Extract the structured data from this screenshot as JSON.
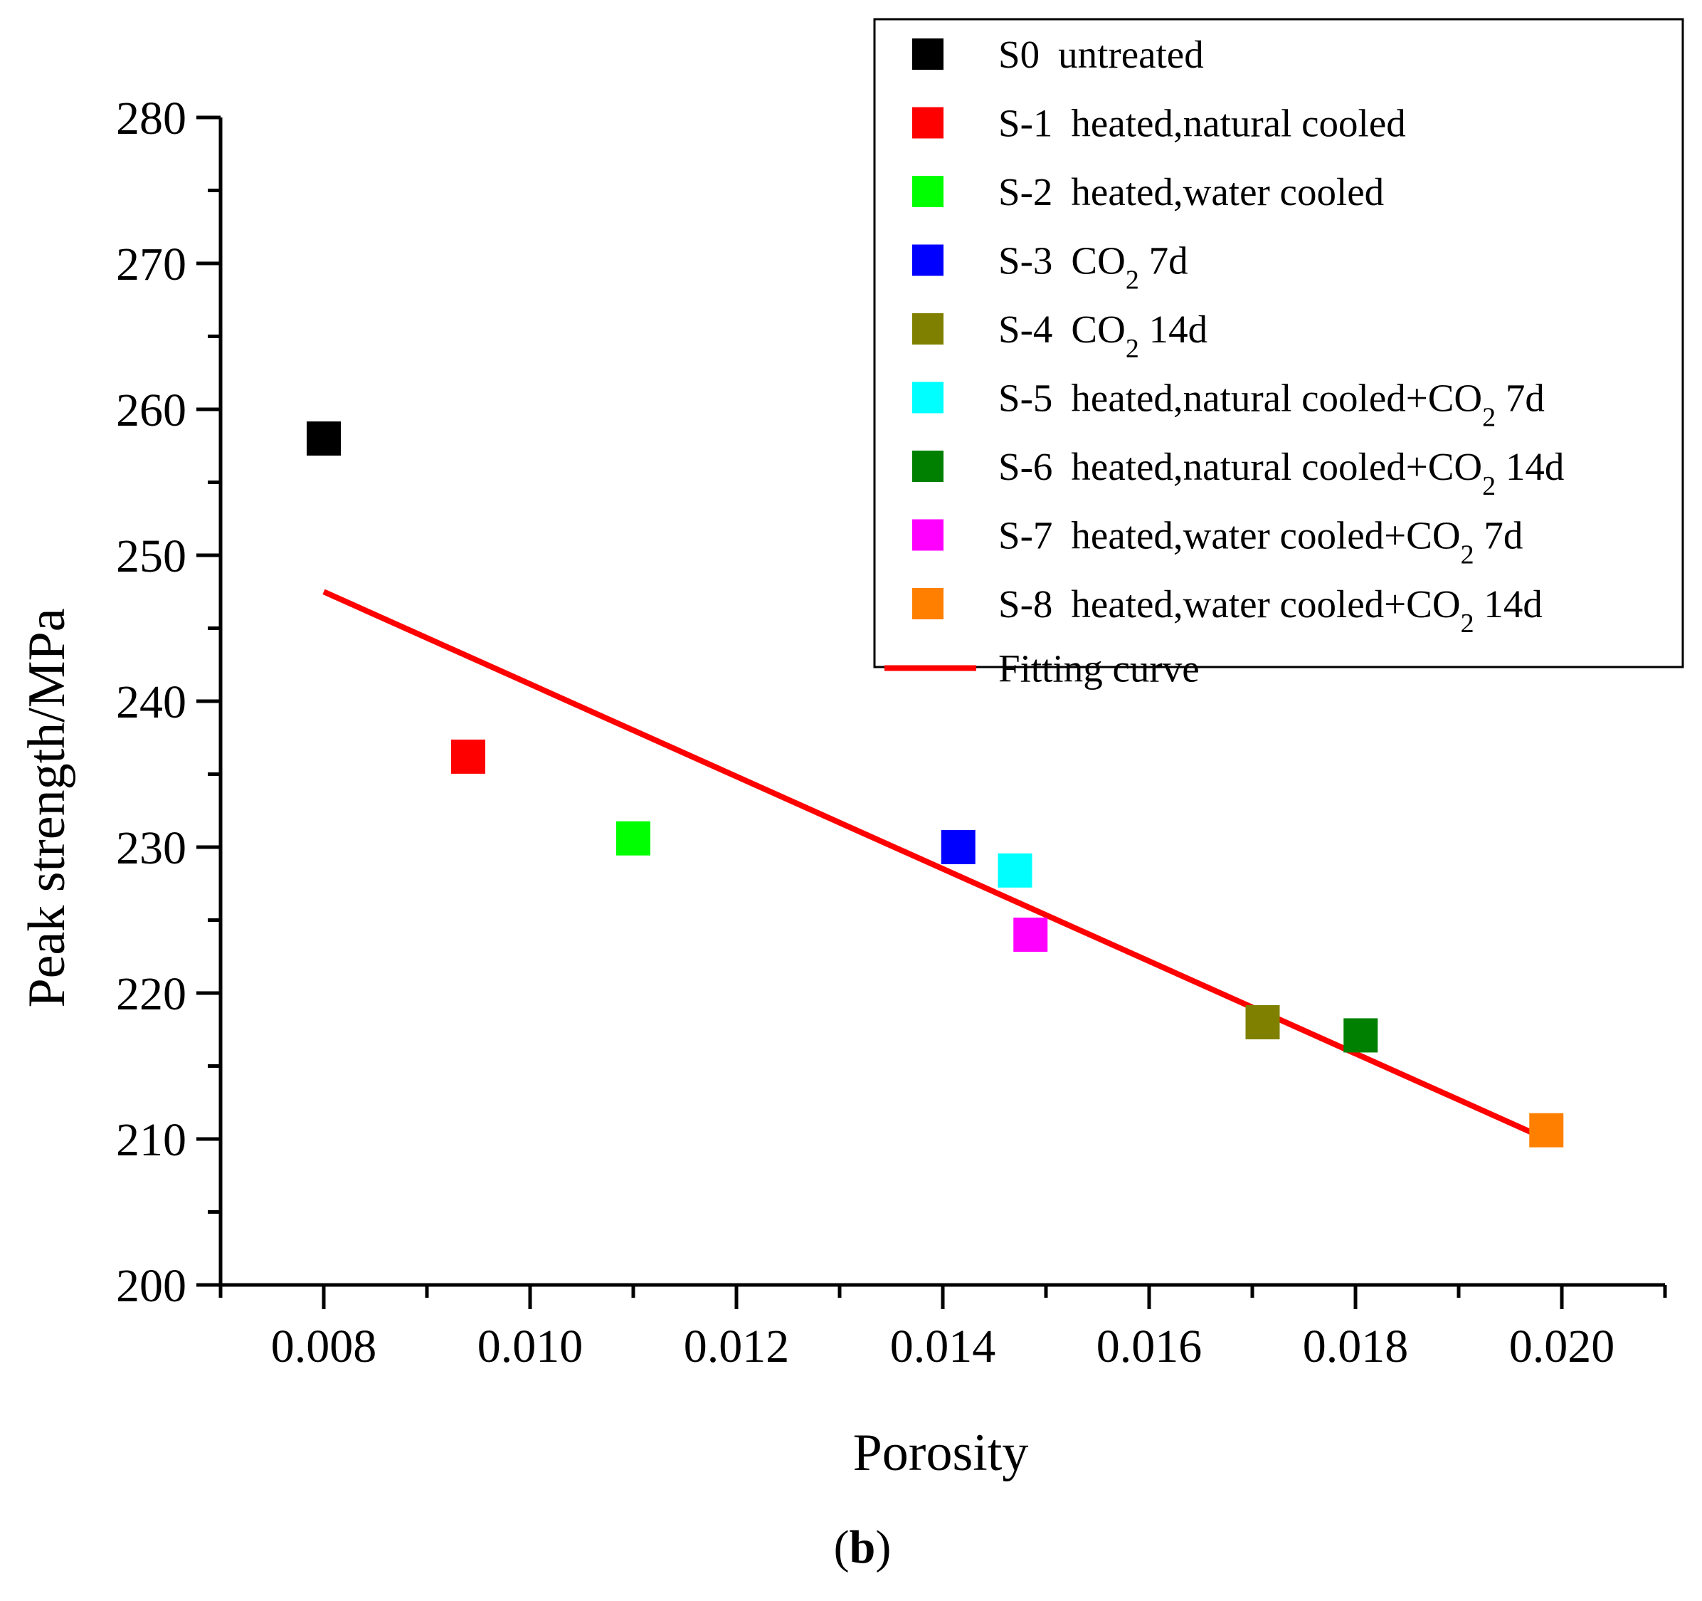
{
  "chart_data": {
    "type": "scatter",
    "xlabel": "Porosity",
    "ylabel": "Peak strength/MPa",
    "panel_label_parts": [
      "(",
      "b",
      ")"
    ],
    "xlim": [
      0.007,
      0.021
    ],
    "ylim": [
      200,
      280
    ],
    "x_major_ticks": [
      0.008,
      0.01,
      0.012,
      0.014,
      0.016,
      0.018,
      0.02
    ],
    "x_tick_labels": [
      "0.008",
      "0.010",
      "0.012",
      "0.014",
      "0.016",
      "0.018",
      "0.020"
    ],
    "y_major_ticks": [
      200,
      210,
      220,
      230,
      240,
      250,
      260,
      270,
      280
    ],
    "y_tick_labels": [
      "200",
      "210",
      "220",
      "230",
      "240",
      "250",
      "260",
      "270",
      "280"
    ],
    "grid": false,
    "legend_position": "top-right",
    "series": [
      {
        "name": "S0",
        "desc": "untreated",
        "sub": "",
        "tail": "",
        "color": "#000000",
        "x": 0.008,
        "y": 258.0
      },
      {
        "name": "S-1",
        "desc": "heated,natural cooled",
        "sub": "",
        "tail": "",
        "color": "#ff0000",
        "x": 0.0094,
        "y": 236.2
      },
      {
        "name": "S-2",
        "desc": "heated,water cooled",
        "sub": "",
        "tail": "",
        "color": "#00ff00",
        "x": 0.011,
        "y": 230.6
      },
      {
        "name": "S-3",
        "desc": "CO",
        "sub": "2",
        "tail": " 7d",
        "color": "#0000ff",
        "x": 0.01415,
        "y": 230.0
      },
      {
        "name": "S-4",
        "desc": "CO",
        "sub": "2",
        "tail": " 14d",
        "color": "#808000",
        "x": 0.0171,
        "y": 218.0
      },
      {
        "name": "S-5",
        "desc": "heated,natural cooled+CO",
        "sub": "2",
        "tail": " 7d",
        "color": "#00ffff",
        "x": 0.0147,
        "y": 228.4
      },
      {
        "name": "S-6",
        "desc": "heated,natural cooled+CO",
        "sub": "2",
        "tail": " 14d",
        "color": "#008000",
        "x": 0.01805,
        "y": 217.1
      },
      {
        "name": "S-7",
        "desc": "heated,water cooled+CO",
        "sub": "2",
        "tail": " 7d",
        "color": "#ff00ff",
        "x": 0.01485,
        "y": 224.0
      },
      {
        "name": "S-8",
        "desc": "heated,water cooled+CO",
        "sub": "2",
        "tail": " 14d",
        "color": "#ff8000",
        "x": 0.01985,
        "y": 210.6
      }
    ],
    "fit_line": {
      "name": "Fitting curve",
      "color": "#ff0000",
      "x": [
        0.008,
        0.01985
      ],
      "y": [
        247.5,
        210.0
      ]
    }
  }
}
